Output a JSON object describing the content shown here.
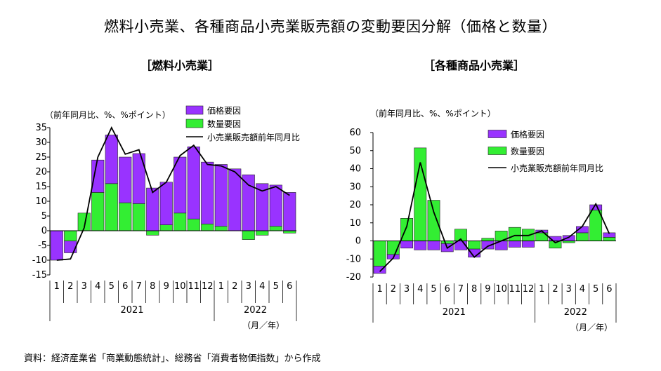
{
  "page": {
    "title": "燃料小売業、各種商品小売業販売額の変動要因分解（価格と数量）",
    "source": "資料：経済産業省「商業動態統計」、総務省「消費者物価指数」から作成"
  },
  "colors": {
    "price": "#9933ff",
    "quantity": "#33ee33",
    "line": "#000000",
    "axis": "#000000"
  },
  "chart_data": [
    {
      "type": "bar",
      "title": "［燃料小売業］",
      "ylabel": "（前年同月比、%、%ポイント）",
      "xunit": "（月／年）",
      "ylim": [
        -15,
        35
      ],
      "yticks": [
        35,
        30,
        25,
        20,
        15,
        10,
        5,
        0,
        -5,
        -10,
        -15
      ],
      "categories": [
        "1",
        "2",
        "3",
        "4",
        "5",
        "6",
        "7",
        "8",
        "9",
        "10",
        "11",
        "12",
        "1",
        "2",
        "3",
        "4",
        "5",
        "6"
      ],
      "years": [
        {
          "label": "2021",
          "start": 0,
          "end": 11
        },
        {
          "label": "2022",
          "start": 12,
          "end": 17
        }
      ],
      "legend": [
        "価格要因",
        "数量要因",
        "小売業販売額前年同月比"
      ],
      "series": [
        {
          "name": "価格要因",
          "kind": "bar",
          "values": [
            -10,
            -4,
            0,
            11,
            16.5,
            15.5,
            17,
            14.5,
            14.5,
            19,
            24.5,
            21,
            21,
            21,
            19,
            16,
            14,
            13
          ]
        },
        {
          "name": "数量要因",
          "kind": "bar",
          "values": [
            0,
            -3.5,
            6,
            13,
            16,
            9.5,
            9.2,
            -1.5,
            2,
            6,
            4,
            2.3,
            1.5,
            0,
            -3,
            -1.5,
            1.5,
            -0.8
          ]
        },
        {
          "name": "小売業販売額前年同月比",
          "kind": "line",
          "values": [
            -10,
            -9.6,
            1,
            25,
            35,
            26,
            27.5,
            13,
            16.5,
            25.5,
            29,
            22.5,
            22,
            20,
            15.5,
            13.5,
            15,
            12
          ]
        }
      ]
    },
    {
      "type": "bar",
      "title": "［各種商品小売業］",
      "ylabel": "（前年同月比、%、%ポイント）",
      "xunit": "（月／年）",
      "ylim": [
        -20,
        60
      ],
      "yticks": [
        60,
        50,
        40,
        30,
        20,
        10,
        0,
        -10,
        -20
      ],
      "categories": [
        "1",
        "2",
        "3",
        "4",
        "5",
        "6",
        "7",
        "8",
        "9",
        "10",
        "11",
        "12",
        "1",
        "2",
        "3",
        "4",
        "5",
        "6"
      ],
      "years": [
        {
          "label": "2021",
          "start": 0,
          "end": 11
        },
        {
          "label": "2022",
          "start": 12,
          "end": 17
        }
      ],
      "legend": [
        "価格要因",
        "数量要因",
        "小売業販売額前年同月比"
      ],
      "series": [
        {
          "name": "価格要因",
          "kind": "bar",
          "values": [
            -4,
            -2.5,
            -4,
            -5,
            -5,
            -4.5,
            -5,
            -4.5,
            -4.5,
            -5,
            -3.5,
            -3.5,
            1.5,
            2.5,
            3,
            3.5,
            3,
            2.5
          ]
        },
        {
          "name": "数量要因",
          "kind": "bar",
          "values": [
            -14,
            -7.5,
            12.5,
            51.5,
            22.5,
            -1.5,
            6.5,
            -4.5,
            1.5,
            5.5,
            7.5,
            6.5,
            4.5,
            -4,
            -1,
            4.5,
            17,
            2
          ]
        },
        {
          "name": "小売業販売額前年同月比",
          "kind": "line",
          "values": [
            -17,
            -9.5,
            8,
            43.5,
            16,
            -4,
            1,
            -9,
            -3,
            0,
            3,
            3,
            5.5,
            -1,
            2,
            8,
            20.5,
            4
          ]
        }
      ]
    }
  ]
}
